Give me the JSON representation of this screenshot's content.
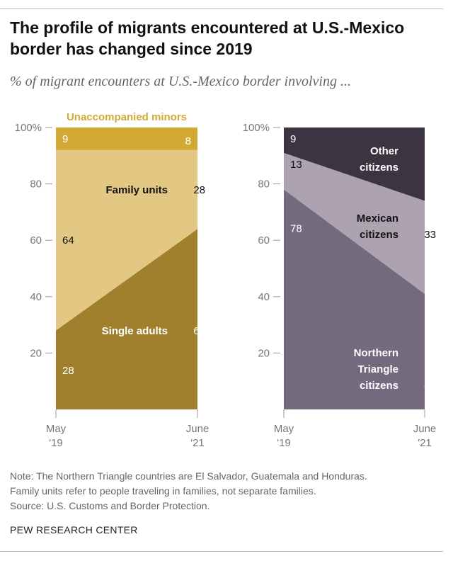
{
  "title": "The profile of migrants encountered at U.S.-Mexico border has changed since 2019",
  "subtitle": "% of migrant encounters at U.S.-Mexico border involving ...",
  "chart_data": [
    {
      "type": "area",
      "stacked": true,
      "x": [
        "May '19",
        "June '21"
      ],
      "x_ticks": [
        [
          "May",
          "'19"
        ],
        [
          "June",
          "'21"
        ]
      ],
      "y_ticks": [
        "100%",
        "80",
        "60",
        "40",
        "20"
      ],
      "ylim": [
        0,
        100
      ],
      "series": [
        {
          "name": "Single adults",
          "values": [
            28,
            64
          ],
          "color": "#A0802C",
          "label_color": "#ffffff"
        },
        {
          "name": "Family units",
          "values": [
            64,
            28
          ],
          "color": "#E2C883",
          "label_color": "#111111"
        },
        {
          "name": "Unaccompanied minors",
          "values": [
            9,
            8
          ],
          "color": "#D3A935",
          "label_color": "#ffffff"
        }
      ]
    },
    {
      "type": "area",
      "stacked": true,
      "x": [
        "May '19",
        "June '21"
      ],
      "x_ticks": [
        [
          "May",
          "'19"
        ],
        [
          "June",
          "'21"
        ]
      ],
      "y_ticks": [
        "100%",
        "80",
        "60",
        "40",
        "20"
      ],
      "ylim": [
        0,
        100
      ],
      "series": [
        {
          "name": "Northern Triangle citizens",
          "name_lines": [
            "Northern",
            "Triangle",
            "citizens"
          ],
          "values": [
            78,
            41
          ],
          "color": "#746A7E",
          "label_color": "#ffffff"
        },
        {
          "name": "Mexican citizens",
          "name_lines": [
            "Mexican",
            "citizens"
          ],
          "values": [
            13,
            33
          ],
          "color": "#ADA3B0",
          "label_color": "#111111"
        },
        {
          "name": "Other citizens",
          "name_lines": [
            "Other",
            "citizens"
          ],
          "values": [
            9,
            26
          ],
          "color": "#3C3440",
          "label_color": "#ffffff"
        }
      ]
    }
  ],
  "notes": [
    "Note: The Northern Triangle countries are El Salvador, Guatemala and Honduras.",
    "Family units refer to people traveling in families, not separate families.",
    "Source: U.S. Customs and Border Protection."
  ],
  "brand": "PEW RESEARCH CENTER"
}
